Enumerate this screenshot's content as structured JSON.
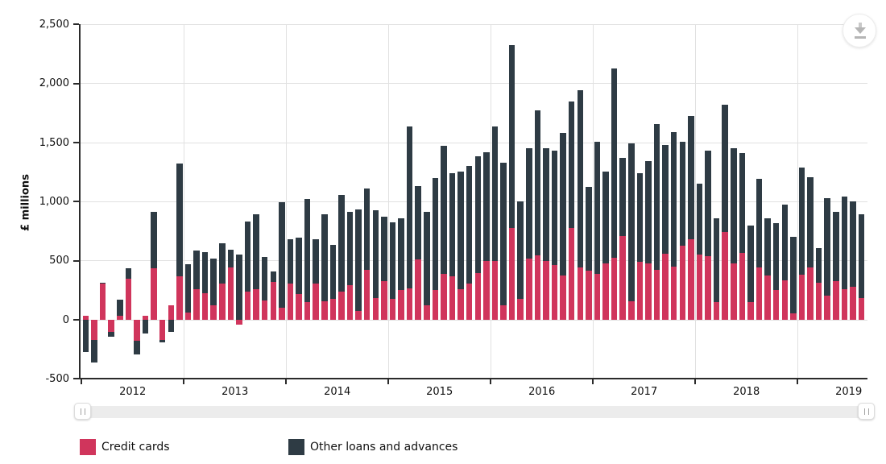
{
  "chart_data": {
    "type": "bar",
    "stacked": true,
    "x_unit": "month",
    "x_start": "2012-01",
    "x_end": "2019-08",
    "x_year_labels": [
      "2012",
      "2013",
      "2014",
      "2015",
      "2016",
      "2017",
      "2018",
      "2019"
    ],
    "ylabel": "£ millions",
    "ylim": [
      -500,
      2500
    ],
    "y_tick_values": [
      -500,
      0,
      500,
      1000,
      1500,
      2000,
      2500
    ],
    "y_tick_labels": [
      "-500",
      "0",
      "500",
      "1,000",
      "1,500",
      "2,000",
      "2,500"
    ],
    "grid": true,
    "legend_position": "bottom",
    "series": [
      {
        "name": "Credit cards",
        "color": "#d0355c",
        "values": [
          35,
          -170,
          305,
          -100,
          35,
          350,
          -180,
          35,
          435,
          -170,
          120,
          370,
          60,
          260,
          225,
          120,
          310,
          445,
          -40,
          240,
          260,
          165,
          320,
          105,
          305,
          220,
          150,
          305,
          160,
          180,
          240,
          290,
          75,
          420,
          185,
          330,
          180,
          250,
          265,
          510,
          125,
          255,
          390,
          370,
          260,
          305,
          395,
          495,
          495,
          125,
          780,
          180,
          515,
          545,
          500,
          465,
          375,
          780,
          440,
          415,
          390,
          475,
          525,
          710,
          155,
          490,
          475,
          420,
          560,
          450,
          630,
          685,
          550,
          540,
          150,
          740,
          475,
          565,
          150,
          445,
          375,
          250,
          335,
          55,
          385,
          445,
          315,
          205,
          325,
          260,
          280,
          185
        ]
      },
      {
        "name": "Other loans and advances",
        "color": "#2e3b44",
        "values": [
          -270,
          -190,
          10,
          -45,
          135,
          85,
          -110,
          -115,
          480,
          -20,
          -100,
          950,
          410,
          325,
          350,
          395,
          335,
          150,
          555,
          590,
          635,
          365,
          90,
          890,
          380,
          475,
          870,
          375,
          730,
          455,
          820,
          625,
          860,
          690,
          740,
          545,
          645,
          610,
          1370,
          625,
          790,
          945,
          1080,
          870,
          995,
          1000,
          990,
          925,
          1140,
          1205,
          1545,
          825,
          940,
          1225,
          955,
          965,
          1205,
          1065,
          1505,
          710,
          1115,
          780,
          1600,
          660,
          1335,
          750,
          870,
          1235,
          920,
          1140,
          875,
          1040,
          600,
          895,
          710,
          1080,
          980,
          845,
          650,
          750,
          485,
          565,
          640,
          645,
          905,
          760,
          295,
          825,
          590,
          780,
          720,
          705
        ]
      }
    ]
  },
  "controls": {
    "download_icon": "download-icon",
    "scrollbar": {
      "left_grip": "‖",
      "right_grip": "‖"
    }
  }
}
